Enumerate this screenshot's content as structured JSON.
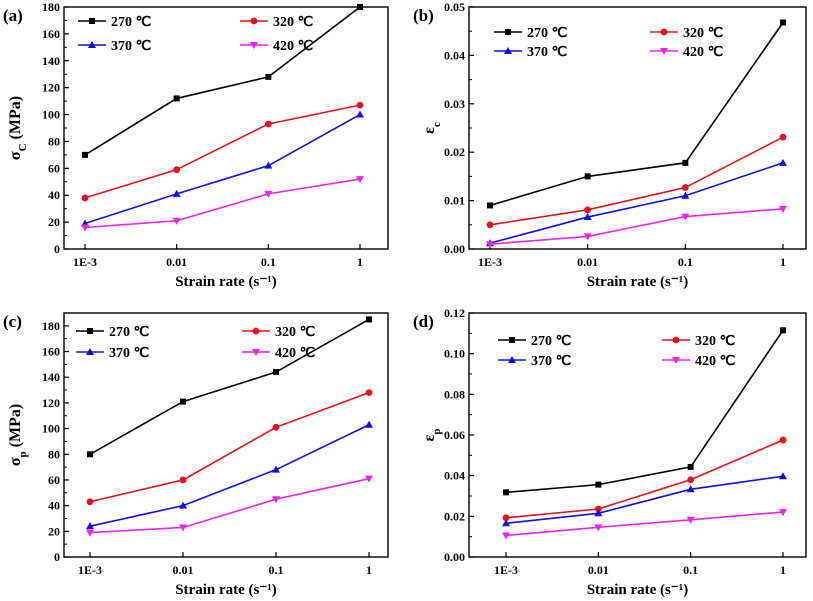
{
  "legend_series": [
    "270 ℃",
    "320 ℃",
    "370 ℃",
    "420 ℃"
  ],
  "colors": [
    "#000000",
    "#e8101a",
    "#1010e6",
    "#ee22ee"
  ],
  "markers": [
    "square",
    "circle",
    "triangle-up",
    "triangle-down"
  ],
  "chart_data": [
    {
      "type": "line",
      "panel_label": "(a)",
      "xlabel": "Strain rate (s⁻¹)",
      "ylabel": "σC (MPa)",
      "ylabel_main": "σ",
      "ylabel_sub": "C",
      "ylabel_rest": " (MPa)",
      "x": [
        "1E-3",
        "0.01",
        "0.1",
        "1"
      ],
      "ylim": [
        0,
        180
      ],
      "yticks": [
        0,
        20,
        40,
        60,
        80,
        100,
        120,
        140,
        160,
        180
      ],
      "ytick_labels": [
        "0",
        "20",
        "40",
        "60",
        "80",
        "100",
        "120",
        "140",
        "160",
        "180"
      ],
      "series": [
        {
          "name": "270 ℃",
          "values": [
            70,
            112,
            128,
            180
          ]
        },
        {
          "name": "320 ℃",
          "values": [
            38,
            59,
            93,
            107
          ]
        },
        {
          "name": "370 ℃",
          "values": [
            19,
            41,
            62,
            100
          ]
        },
        {
          "name": "420 ℃",
          "values": [
            16,
            21,
            41,
            52
          ]
        }
      ]
    },
    {
      "type": "line",
      "panel_label": "(b)",
      "xlabel": "Strain rate (s⁻¹)",
      "ylabel": "εc",
      "ylabel_main": "ε",
      "ylabel_sub": "c",
      "ylabel_rest": "",
      "x": [
        "1E-3",
        "0.01",
        "0.1",
        "1"
      ],
      "ylim": [
        0,
        0.05
      ],
      "yticks": [
        0,
        0.01,
        0.02,
        0.03,
        0.04,
        0.05
      ],
      "ytick_labels": [
        "0.00",
        "0.01",
        "0.02",
        "0.03",
        "0.04",
        "0.05"
      ],
      "series": [
        {
          "name": "270 ℃",
          "values": [
            0.009,
            0.015,
            0.0178,
            0.0468
          ]
        },
        {
          "name": "320 ℃",
          "values": [
            0.005,
            0.0081,
            0.0127,
            0.0231
          ]
        },
        {
          "name": "370 ℃",
          "values": [
            0.0012,
            0.0066,
            0.011,
            0.0178
          ]
        },
        {
          "name": "420 ℃",
          "values": [
            0.001,
            0.0026,
            0.0067,
            0.0083
          ]
        }
      ]
    },
    {
      "type": "line",
      "panel_label": "(c)",
      "xlabel": "Strain rate (s⁻¹)",
      "ylabel": "σp (MPa)",
      "ylabel_main": "σ",
      "ylabel_sub": "p",
      "ylabel_rest": " (MPa)",
      "x": [
        "1E-3",
        "0.01",
        "0.1",
        "1"
      ],
      "ylim": [
        0,
        190
      ],
      "yticks": [
        0,
        20,
        40,
        60,
        80,
        100,
        120,
        140,
        160,
        180
      ],
      "ytick_labels": [
        "0",
        "20",
        "40",
        "60",
        "80",
        "100",
        "120",
        "140",
        "160",
        "180"
      ],
      "series": [
        {
          "name": "270 ℃",
          "values": [
            80,
            121,
            144,
            185
          ]
        },
        {
          "name": "320 ℃",
          "values": [
            43,
            60,
            101,
            128
          ]
        },
        {
          "name": "370 ℃",
          "values": [
            24,
            40,
            68,
            103
          ]
        },
        {
          "name": "420 ℃",
          "values": [
            19,
            23,
            45,
            61
          ]
        }
      ]
    },
    {
      "type": "line",
      "panel_label": "(d)",
      "xlabel": "Strain rate (s⁻¹)",
      "ylabel": "εp",
      "ylabel_main": "ε",
      "ylabel_sub": "p",
      "ylabel_rest": "",
      "x": [
        "1E-3",
        "0.01",
        "0.1",
        "1"
      ],
      "ylim": [
        0,
        0.12
      ],
      "yticks": [
        0,
        0.02,
        0.04,
        0.06,
        0.08,
        0.1,
        0.12
      ],
      "ytick_labels": [
        "0.00",
        "0.02",
        "0.04",
        "0.06",
        "0.08",
        "0.10",
        "0.12"
      ],
      "series": [
        {
          "name": "270 ℃",
          "values": [
            0.0318,
            0.0356,
            0.0443,
            0.1115
          ]
        },
        {
          "name": "320 ℃",
          "values": [
            0.0193,
            0.0236,
            0.038,
            0.0575
          ]
        },
        {
          "name": "370 ℃",
          "values": [
            0.0166,
            0.0215,
            0.0333,
            0.0397
          ]
        },
        {
          "name": "420 ℃",
          "values": [
            0.0106,
            0.0146,
            0.0183,
            0.0221
          ]
        }
      ]
    }
  ]
}
